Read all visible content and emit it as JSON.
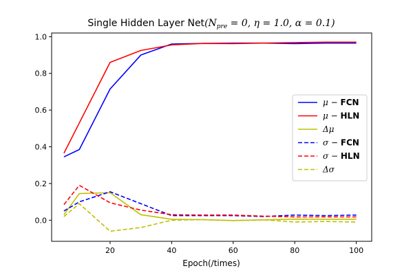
{
  "chart_data": {
    "type": "line",
    "title": {
      "prefix": "Single Hidden Layer Net",
      "params": "(N",
      "params_sub": "pre",
      "params_rest": " = 0, η = 1.0, α = 0.1)"
    },
    "xlabel": "Epoch(/times)",
    "ylabel": "",
    "xlim": [
      1,
      105
    ],
    "ylim": [
      -0.115,
      1.02
    ],
    "xticks": [
      20,
      40,
      60,
      80,
      100
    ],
    "yticks": [
      0.0,
      0.2,
      0.4,
      0.6,
      0.8,
      1.0
    ],
    "ytick_labels": [
      "0.0",
      "0.2",
      "0.4",
      "0.6",
      "0.8",
      "1.0"
    ],
    "xtick_labels": [
      "20",
      "40",
      "60",
      "80",
      "100"
    ],
    "x": [
      5,
      10,
      20,
      30,
      40,
      50,
      60,
      70,
      80,
      90,
      100
    ],
    "legend_position": "center-right",
    "series": [
      {
        "name_sym": "μ",
        "name_sep": " − ",
        "name_tag": "FCN",
        "color": "#0000ff",
        "dash": "solid",
        "values": [
          0.345,
          0.385,
          0.715,
          0.9,
          0.96,
          0.963,
          0.965,
          0.965,
          0.962,
          0.965,
          0.965
        ]
      },
      {
        "name_sym": "μ",
        "name_sep": " − ",
        "name_tag": "HLN",
        "color": "#ff0000",
        "dash": "solid",
        "values": [
          0.365,
          0.53,
          0.86,
          0.925,
          0.955,
          0.963,
          0.962,
          0.965,
          0.968,
          0.97,
          0.97
        ]
      },
      {
        "name_sym": "Δμ",
        "name_sep": "",
        "name_tag": "",
        "color": "#bfbf00",
        "dash": "solid",
        "values": [
          0.03,
          0.145,
          0.15,
          0.03,
          0.005,
          0.003,
          -0.002,
          0.002,
          0.006,
          0.005,
          0.005
        ]
      },
      {
        "name_sym": "σ",
        "name_sep": " − ",
        "name_tag": "FCN",
        "color": "#0000ff",
        "dash": "dashed",
        "values": [
          0.05,
          0.1,
          0.155,
          0.09,
          0.025,
          0.025,
          0.025,
          0.02,
          0.028,
          0.025,
          0.028
        ]
      },
      {
        "name_sym": "σ",
        "name_sep": " − ",
        "name_tag": "HLN",
        "color": "#ff0000",
        "dash": "dashed",
        "values": [
          0.085,
          0.19,
          0.095,
          0.055,
          0.03,
          0.028,
          0.028,
          0.022,
          0.018,
          0.018,
          0.018
        ]
      },
      {
        "name_sym": "Δσ",
        "name_sep": "",
        "name_tag": "",
        "color": "#bfbf00",
        "dash": "dashed",
        "values": [
          0.02,
          0.09,
          -0.06,
          -0.04,
          0.0,
          0.003,
          -0.002,
          0.002,
          -0.01,
          -0.007,
          -0.01
        ]
      }
    ]
  }
}
